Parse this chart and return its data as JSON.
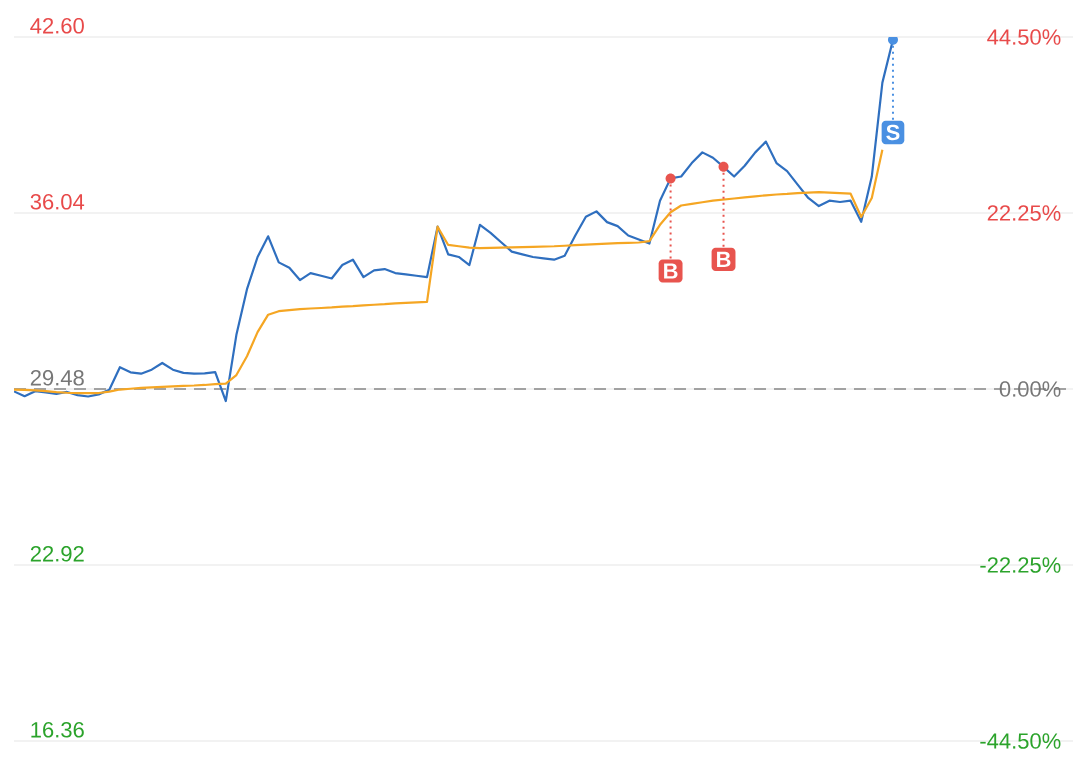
{
  "chart_data": {
    "type": "line",
    "categories": [
      null,
      null,
      null,
      null,
      null,
      null,
      null,
      null,
      null,
      null,
      null,
      null,
      null,
      null,
      null,
      null,
      null,
      null,
      null,
      null,
      null,
      null,
      null,
      null,
      null,
      null,
      null,
      null,
      null,
      null,
      null,
      null,
      null,
      null,
      null,
      null,
      null,
      null,
      null,
      null,
      null,
      null,
      null,
      null,
      null,
      null,
      null,
      null,
      null,
      null,
      null,
      null,
      null,
      null,
      null,
      null,
      null,
      null,
      null,
      null,
      null,
      null,
      null,
      null,
      null,
      null,
      null,
      null,
      null,
      null,
      null,
      null,
      null,
      null,
      null,
      null,
      null,
      null,
      null,
      null,
      null,
      null,
      null,
      null,
      null,
      null,
      null,
      null,
      null,
      null,
      null,
      null,
      null,
      null,
      null,
      null,
      null,
      null,
      null,
      null,
      null
    ],
    "ylim": [
      16.36,
      42.6
    ],
    "yticks": [
      16.36,
      22.92,
      29.48,
      36.04,
      {
        "value": 42.6,
        "label": "42.60"
      }
    ],
    "y2lim": [
      -44.5,
      44.5
    ],
    "y2ticks": [
      {
        "value": -44.5,
        "label": "-44.50%"
      },
      {
        "value": -22.25,
        "label": "-22.25%"
      },
      {
        "value": 0,
        "label": "0.00%"
      },
      {
        "value": 22.25,
        "label": "22.25%"
      },
      {
        "value": 44.5,
        "label": "44.50%"
      }
    ],
    "grid": "y",
    "marker": "none",
    "line_style": "solid",
    "ref_lines": [
      {
        "axis": "y",
        "value": 29.48,
        "color": "#888888",
        "line_style": "dashed"
      }
    ],
    "annotations": [
      {
        "text": "B",
        "y": 37.33
      },
      {
        "text": "B",
        "y": 37.76
      },
      {
        "text": "S",
        "y": 42.5
      }
    ],
    "series": [
      {
        "color": "#2f6fbf",
        "values": [
          29.39,
          29.21,
          29.4,
          29.35,
          29.3,
          29.37,
          29.25,
          29.2,
          29.28,
          29.45,
          30.29,
          30.1,
          30.05,
          30.2,
          30.45,
          30.2,
          30.08,
          30.05,
          30.06,
          30.11,
          29.03,
          31.5,
          33.2,
          34.4,
          35.17,
          34.2,
          34.0,
          33.54,
          33.8,
          33.7,
          33.6,
          34.1,
          34.3,
          33.65,
          33.9,
          33.95,
          33.8,
          33.75,
          33.7,
          33.65,
          35.53,
          34.5,
          34.4,
          34.1,
          35.6,
          35.3,
          34.95,
          34.6,
          34.5,
          34.4,
          34.35,
          34.3,
          34.45,
          35.2,
          35.9,
          36.1,
          35.7,
          35.55,
          35.2,
          35.05,
          34.9,
          36.5,
          37.33,
          37.4,
          37.9,
          38.3,
          38.1,
          37.76,
          37.4,
          37.8,
          38.3,
          38.7,
          37.9,
          37.6,
          37.1,
          36.6,
          36.3,
          36.5,
          36.45,
          36.5,
          35.71,
          37.4,
          40.9,
          42.5,
          null,
          null,
          null,
          null,
          null,
          null,
          null,
          null,
          null,
          null,
          null,
          null,
          null,
          null,
          null,
          null,
          null
        ]
      },
      {
        "color": "#f5a623",
        "values": [
          29.46,
          29.45,
          29.43,
          29.4,
          29.36,
          29.34,
          29.33,
          29.33,
          29.33,
          29.38,
          29.46,
          29.49,
          29.52,
          29.54,
          29.56,
          29.58,
          29.6,
          29.61,
          29.63,
          29.66,
          29.68,
          30.0,
          30.7,
          31.6,
          32.25,
          32.38,
          32.42,
          32.46,
          32.48,
          32.5,
          32.52,
          32.55,
          32.57,
          32.6,
          32.62,
          32.64,
          32.67,
          32.69,
          32.71,
          32.73,
          35.53,
          34.85,
          34.8,
          34.75,
          34.73,
          34.74,
          34.75,
          34.76,
          34.77,
          34.78,
          34.79,
          34.8,
          34.82,
          34.84,
          34.86,
          34.88,
          34.9,
          34.92,
          34.93,
          34.94,
          34.99,
          35.6,
          36.07,
          36.32,
          36.38,
          36.44,
          36.5,
          36.54,
          36.58,
          36.62,
          36.66,
          36.7,
          36.73,
          36.75,
          36.78,
          36.8,
          36.82,
          36.8,
          36.78,
          36.76,
          35.89,
          36.6,
          38.4,
          null,
          null,
          null,
          null,
          null,
          null,
          null,
          null,
          null,
          null,
          null,
          null,
          null,
          null,
          null,
          null,
          null,
          null
        ]
      }
    ]
  }
}
